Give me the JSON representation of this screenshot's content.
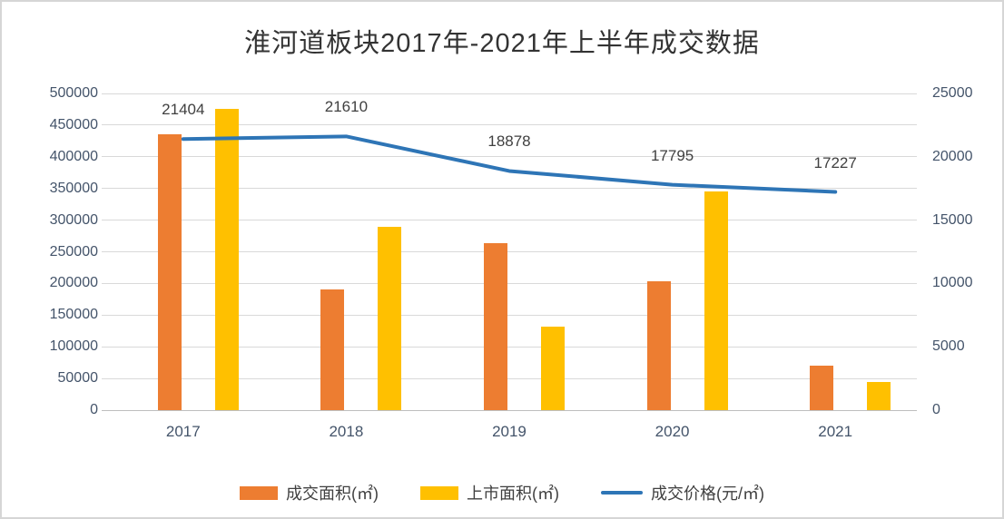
{
  "chart_data": {
    "type": "bar",
    "subtype": "bar+line combo",
    "title": "淮河道板块2017年-2021年上半年成交数据",
    "categories": [
      "2017",
      "2018",
      "2019",
      "2020",
      "2021"
    ],
    "series": [
      {
        "name": "成交面积(㎡)",
        "type": "bar",
        "axis": "left",
        "color": "#ED7D31",
        "values": [
          435000,
          190000,
          263000,
          203000,
          70000
        ]
      },
      {
        "name": "上市面积(㎡)",
        "type": "bar",
        "axis": "left",
        "color": "#FFC000",
        "values": [
          475000,
          290000,
          132000,
          345000,
          45000
        ]
      },
      {
        "name": "成交价格(元/㎡)",
        "type": "line",
        "axis": "right",
        "color": "#2E75B6",
        "values": [
          21404,
          21610,
          18878,
          17795,
          17227
        ],
        "point_labels": [
          "21404",
          "21610",
          "18878",
          "17795",
          "17227"
        ]
      }
    ],
    "left_axis": {
      "min": 0,
      "max": 500000,
      "step": 50000,
      "tick_labels": [
        "0",
        "50000",
        "100000",
        "150000",
        "200000",
        "250000",
        "300000",
        "350000",
        "400000",
        "450000",
        "500000"
      ]
    },
    "right_axis": {
      "min": 0,
      "max": 25000,
      "step": 5000,
      "tick_labels": [
        "0",
        "5000",
        "10000",
        "15000",
        "20000",
        "25000"
      ]
    },
    "grid": true,
    "legend_position": "bottom"
  },
  "colors": {
    "grid": "#d9d9d9",
    "axis_text": "#44546A",
    "title_text": "#333333",
    "label_text": "#404040",
    "background": "#ffffff"
  }
}
